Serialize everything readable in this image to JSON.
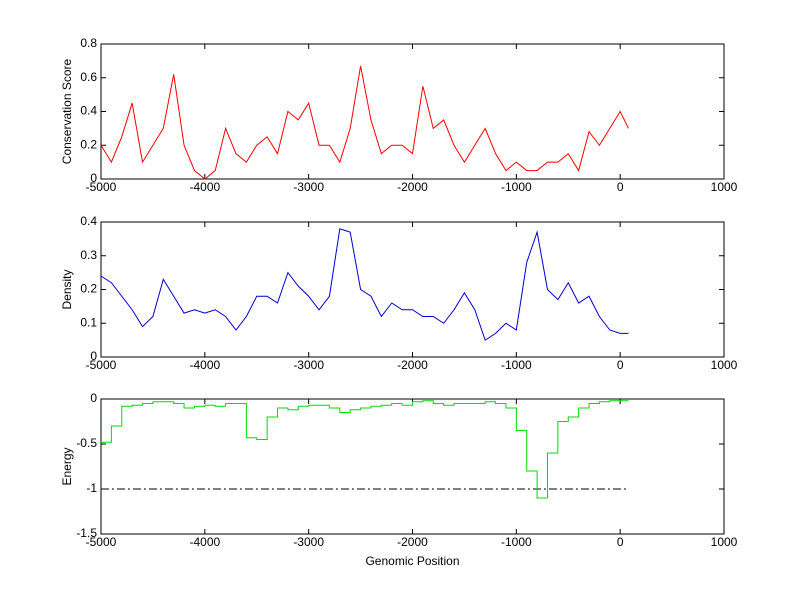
{
  "chart_data": [
    {
      "type": "line",
      "ylabel": "Conservation Score",
      "x": [
        -5000,
        -4900,
        -4800,
        -4700,
        -4600,
        -4500,
        -4400,
        -4300,
        -4200,
        -4100,
        -4000,
        -3900,
        -3800,
        -3700,
        -3600,
        -3500,
        -3400,
        -3300,
        -3200,
        -3100,
        -3000,
        -2900,
        -2800,
        -2700,
        -2600,
        -2500,
        -2400,
        -2300,
        -2200,
        -2100,
        -2000,
        -1900,
        -1800,
        -1700,
        -1600,
        -1500,
        -1400,
        -1300,
        -1200,
        -1100,
        -1000,
        -900,
        -800,
        -700,
        -600,
        -500,
        -400,
        -300,
        -200,
        -100,
        0,
        80
      ],
      "values": [
        0.2,
        0.1,
        0.25,
        0.45,
        0.1,
        0.2,
        0.3,
        0.62,
        0.2,
        0.05,
        0,
        0.05,
        0.3,
        0.15,
        0.1,
        0.2,
        0.25,
        0.15,
        0.4,
        0.35,
        0.45,
        0.2,
        0.2,
        0.1,
        0.3,
        0.67,
        0.35,
        0.15,
        0.2,
        0.2,
        0.15,
        0.55,
        0.3,
        0.35,
        0.2,
        0.1,
        0.2,
        0.3,
        0.15,
        0.05,
        0.1,
        0.05,
        0.05,
        0.1,
        0.1,
        0.15,
        0.05,
        0.28,
        0.2,
        0.3,
        0.4,
        0.3
      ],
      "color": "#ff0000",
      "xlim": [
        -5000,
        1000
      ],
      "xticks": [
        -5000,
        -4000,
        -3000,
        -2000,
        -1000,
        0,
        1000
      ],
      "ylim": [
        0,
        0.8
      ],
      "yticks": [
        0,
        0.2,
        0.4,
        0.6,
        0.8
      ]
    },
    {
      "type": "line",
      "ylabel": "Density",
      "x": [
        -5000,
        -4900,
        -4800,
        -4700,
        -4600,
        -4500,
        -4400,
        -4300,
        -4200,
        -4100,
        -4000,
        -3900,
        -3800,
        -3700,
        -3600,
        -3500,
        -3400,
        -3300,
        -3200,
        -3100,
        -3000,
        -2900,
        -2800,
        -2700,
        -2600,
        -2500,
        -2400,
        -2300,
        -2200,
        -2100,
        -2000,
        -1900,
        -1800,
        -1700,
        -1600,
        -1500,
        -1400,
        -1300,
        -1200,
        -1100,
        -1000,
        -900,
        -800,
        -700,
        -600,
        -500,
        -400,
        -300,
        -200,
        -100,
        0,
        80
      ],
      "values": [
        0.24,
        0.22,
        0.18,
        0.14,
        0.09,
        0.12,
        0.23,
        0.18,
        0.13,
        0.14,
        0.13,
        0.14,
        0.12,
        0.08,
        0.12,
        0.18,
        0.18,
        0.16,
        0.25,
        0.21,
        0.18,
        0.14,
        0.18,
        0.38,
        0.37,
        0.2,
        0.18,
        0.12,
        0.16,
        0.14,
        0.14,
        0.12,
        0.12,
        0.1,
        0.14,
        0.19,
        0.14,
        0.05,
        0.07,
        0.1,
        0.08,
        0.28,
        0.37,
        0.2,
        0.17,
        0.22,
        0.16,
        0.18,
        0.12,
        0.08,
        0.07,
        0.07
      ],
      "color": "#0000cc",
      "xlim": [
        -5000,
        1000
      ],
      "xticks": [
        -5000,
        -4000,
        -3000,
        -2000,
        -1000,
        0,
        1000
      ],
      "ylim": [
        0,
        0.4
      ],
      "yticks": [
        0,
        0.1,
        0.2,
        0.3,
        0.4
      ]
    },
    {
      "type": "step",
      "ylabel": "Energy",
      "xlabel": "Genomic Position",
      "x": [
        -5000,
        -4900,
        -4800,
        -4700,
        -4600,
        -4500,
        -4400,
        -4300,
        -4200,
        -4100,
        -4000,
        -3900,
        -3800,
        -3700,
        -3600,
        -3500,
        -3400,
        -3300,
        -3200,
        -3100,
        -3000,
        -2900,
        -2800,
        -2700,
        -2600,
        -2500,
        -2400,
        -2300,
        -2200,
        -2100,
        -2000,
        -1900,
        -1800,
        -1700,
        -1600,
        -1500,
        -1400,
        -1300,
        -1200,
        -1100,
        -1000,
        -900,
        -800,
        -700,
        -600,
        -500,
        -400,
        -300,
        -200,
        -100,
        0,
        80
      ],
      "values": [
        -0.48,
        -0.3,
        -0.08,
        -0.07,
        -0.05,
        -0.03,
        -0.03,
        -0.05,
        -0.1,
        -0.08,
        -0.07,
        -0.08,
        -0.05,
        -0.05,
        -0.43,
        -0.45,
        -0.2,
        -0.1,
        -0.12,
        -0.08,
        -0.07,
        -0.07,
        -0.1,
        -0.15,
        -0.12,
        -0.1,
        -0.08,
        -0.07,
        -0.05,
        -0.07,
        -0.03,
        -0.02,
        -0.05,
        -0.07,
        -0.05,
        -0.05,
        -0.05,
        -0.03,
        -0.05,
        -0.1,
        -0.35,
        -0.8,
        -1.1,
        -0.6,
        -0.25,
        -0.2,
        -0.1,
        -0.05,
        -0.03,
        -0.02,
        -0.02,
        -0.02
      ],
      "color": "#00dd00",
      "threshold": {
        "y": -1,
        "x": [
          -5000,
          80
        ],
        "color": "#000000",
        "style": "dashdot"
      },
      "xlim": [
        -5000,
        1000
      ],
      "xticks": [
        -5000,
        -4000,
        -3000,
        -2000,
        -1000,
        0,
        1000
      ],
      "ylim": [
        -1.5,
        0
      ],
      "yticks": [
        -1.5,
        -1,
        -0.5,
        0
      ]
    }
  ]
}
